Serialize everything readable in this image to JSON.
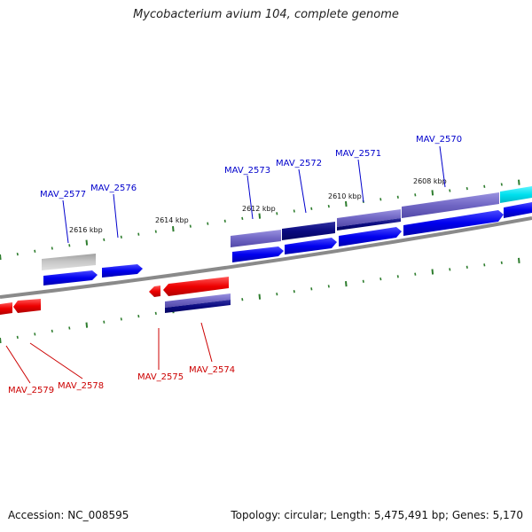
{
  "header": {
    "title": "Mycobacterium avium 104, complete genome"
  },
  "footer": {
    "accession": "Accession: NC_008595",
    "topology": "Topology: circular; Length: 5,475,491 bp; Genes: 5,170"
  },
  "scale_labels": [
    "2608 kbp",
    "2610 kbp",
    "2612 kbp",
    "2614 kbp",
    "2616 kbp"
  ],
  "gene_labels": {
    "forward": [
      "MAV_2570",
      "MAV_2571",
      "MAV_2572",
      "MAV_2573",
      "MAV_2576",
      "MAV_2577"
    ],
    "reverse": [
      "MAV_2574",
      "MAV_2575",
      "MAV_2578",
      "MAV_2579"
    ]
  },
  "colors": {
    "forward_gene": "#0000ee",
    "reverse_gene": "#ee0000",
    "forward_label": "#0000cc",
    "reverse_label": "#cc0000",
    "feature_light_purple": "#7b72c9",
    "feature_dark_navy": "#0a0a80",
    "feature_gray": "#b4b4b4",
    "feature_cyan": "#00e5ee",
    "tick_color": "#2e7d2e",
    "backbone": "#888888"
  }
}
